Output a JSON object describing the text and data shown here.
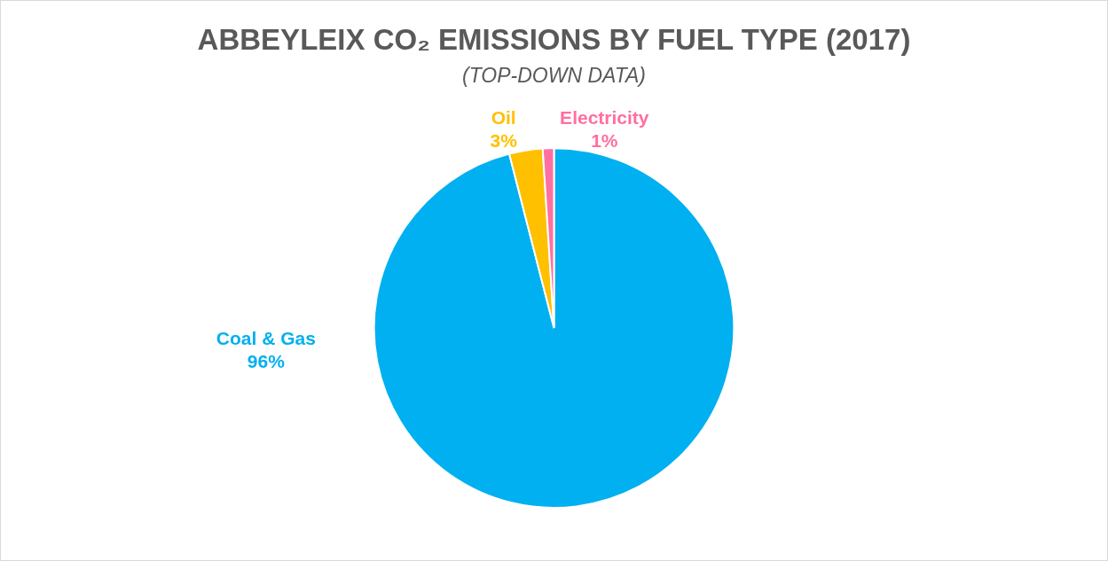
{
  "chart_data": {
    "type": "pie",
    "title": "ABBEYLEIX CO₂ EMISSIONS BY FUEL TYPE (2017)",
    "subtitle": "(TOP-DOWN DATA)",
    "categories": [
      "Coal & Gas",
      "Oil",
      "Electricity"
    ],
    "values": [
      96,
      3,
      1
    ],
    "colors": [
      "#00b0f0",
      "#ffc000",
      "#ff6f9f"
    ],
    "value_labels": [
      "96%",
      "3%",
      "1%"
    ],
    "legend": false
  }
}
